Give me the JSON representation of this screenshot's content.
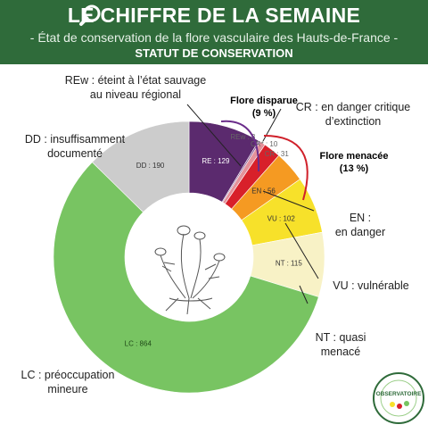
{
  "header": {
    "title": "LE CHIFFRE DE LA SEMAINE",
    "subtitle": "- État de conservation de la flore vasculaire des Hauts-de-France -",
    "section_title": "STATUT DE CONSERVATION"
  },
  "colors": {
    "header_bg": "#2f6b3a",
    "RE": "#5b2a6e",
    "REw": "#8a5a96",
    "CR*": "#e4919a",
    "CR": "#d8202a",
    "EN": "#f59a22",
    "VU": "#f7e12a",
    "NT": "#f8f2c6",
    "LC": "#78c462",
    "DD": "#cccccc",
    "disparue_accent": "#6a2c8a",
    "menacee_accent": "#d0202a"
  },
  "groups": {
    "disparue_title": "Flore disparue",
    "disparue_pct": "(9 %)",
    "menacee_title": "Flore menacée",
    "menacee_pct": "(13 %)"
  },
  "callouts": {
    "REw_line1": "REw : éteint à l’état sauvage",
    "REw_line2": "au niveau régional",
    "CR_line1": "CR : en danger critique",
    "CR_line2": "d’extinction",
    "DD_line1": "DD : insuffisamment",
    "DD_line2": "documenté",
    "EN_line1": "EN :",
    "EN_line2": "en danger",
    "VU_line1": "VU : vulnérable",
    "NT_line1": "NT : quasi",
    "NT_line2": "menacé",
    "LC_line1": "LC : préoccupation",
    "LC_line2": "mineure"
  },
  "logo": {
    "text": "OBSERVATOIRE"
  },
  "chart_data": {
    "type": "pie",
    "donut": true,
    "categories": [
      "RE",
      "REw",
      "CR*",
      "CR",
      "EN",
      "VU",
      "NT",
      "LC",
      "DD"
    ],
    "values": [
      129,
      3,
      10,
      31,
      56,
      102,
      115,
      864,
      190
    ],
    "labels": [
      "RE : 129",
      "REw : 3",
      "CR* : 10",
      "CR : 31",
      "EN : 56",
      "VU : 102",
      "NT : 115",
      "LC : 864",
      "DD : 190"
    ]
  }
}
